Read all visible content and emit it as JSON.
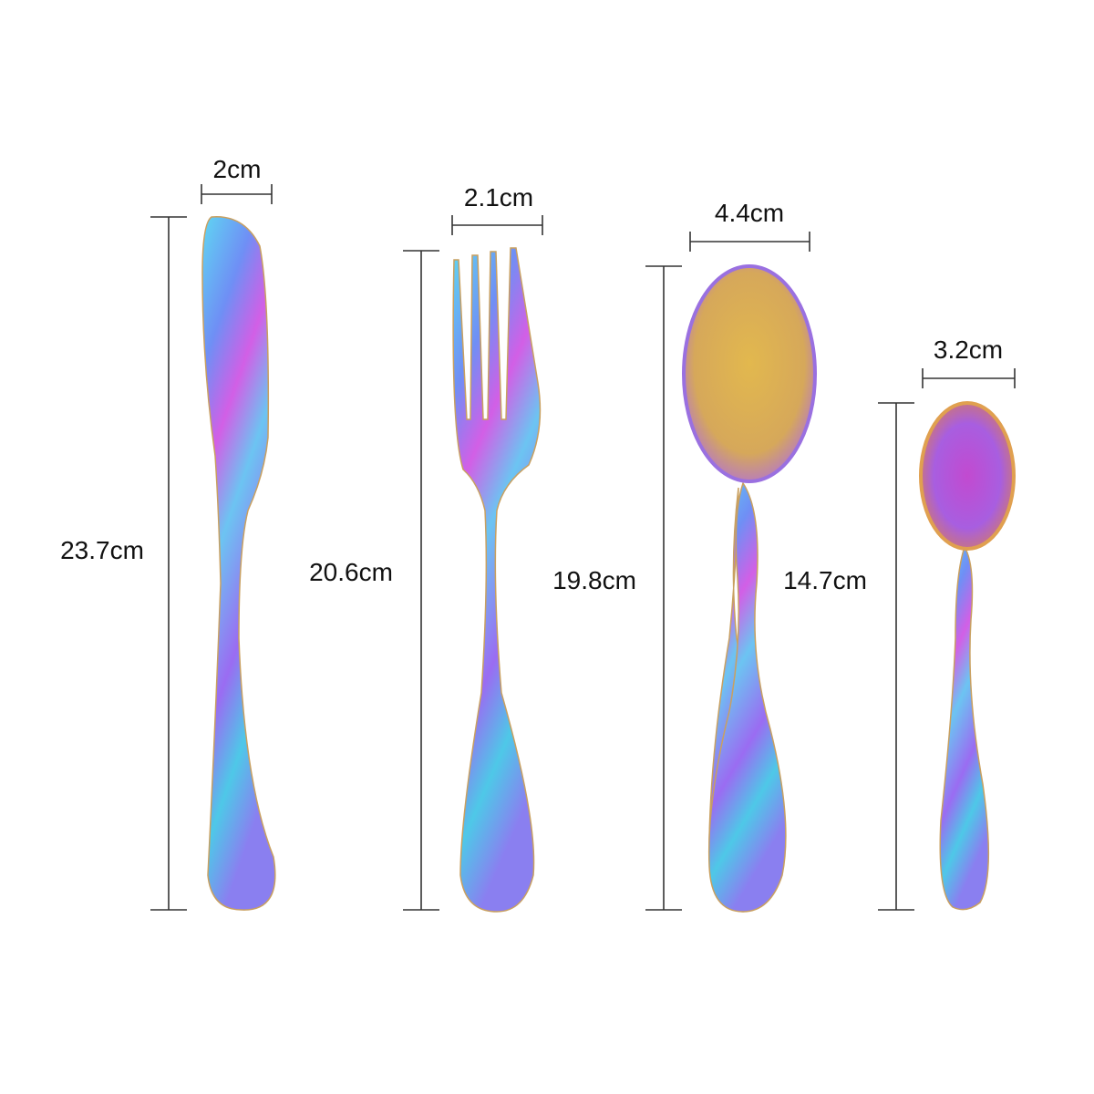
{
  "items": [
    {
      "name": "knife",
      "width_label": "2cm",
      "length_label": "23.7cm"
    },
    {
      "name": "fork",
      "width_label": "2.1cm",
      "length_label": "20.6cm"
    },
    {
      "name": "tablespoon",
      "width_label": "4.4cm",
      "length_label": "19.8cm"
    },
    {
      "name": "teaspoon",
      "width_label": "3.2cm",
      "length_label": "14.7cm"
    }
  ],
  "colors": {
    "background": "#ffffff",
    "dimension_line": "#333333",
    "finish": [
      "#4fd0f0",
      "#7a7cf5",
      "#d05ce8",
      "#e6b850",
      "#5ee0c0"
    ]
  }
}
